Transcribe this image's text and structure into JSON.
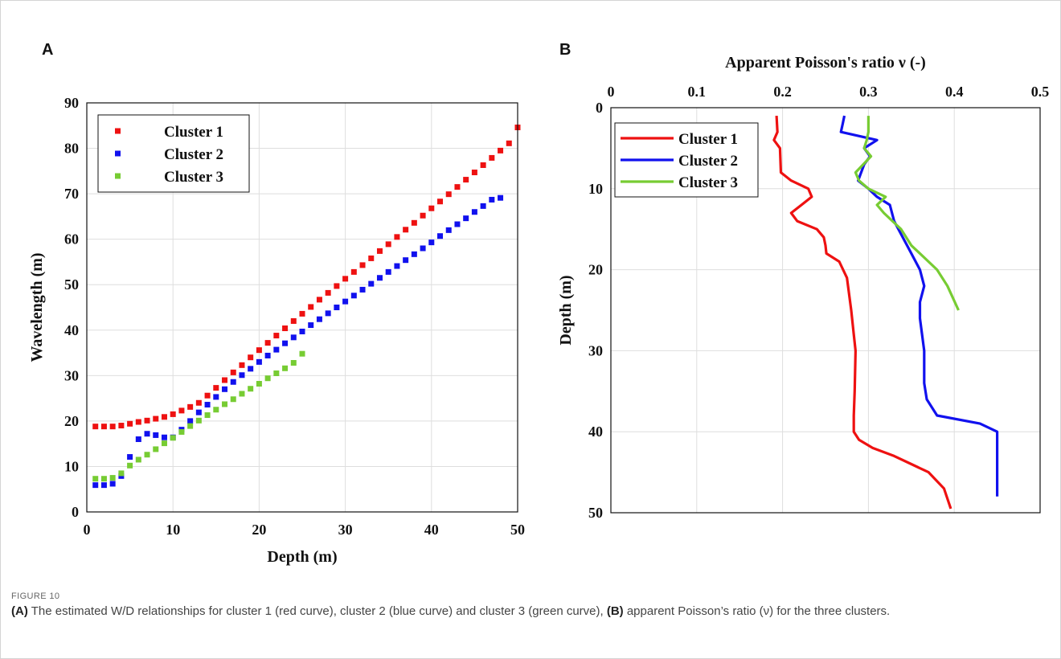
{
  "panels": {
    "a_letter": "A",
    "b_letter": "B"
  },
  "caption": {
    "label": "FIGURE 10",
    "a_tag": "(A)",
    "a_text": " The estimated W/D relationships for cluster 1 (red curve), cluster 2 (blue curve) and cluster 3 (green curve), ",
    "b_tag": "(B)",
    "b_text": " apparent Poisson’s ratio (ν) for the three clusters."
  },
  "colors": {
    "cluster1": "#ee1111",
    "cluster2": "#1111ee",
    "cluster3": "#77cc33"
  },
  "chart_data": [
    {
      "type": "scatter",
      "panel": "A",
      "xlabel": "Depth (m)",
      "ylabel": "Wavelength (m)",
      "xlim": [
        0,
        50
      ],
      "ylim": [
        0,
        90
      ],
      "xticks": [
        0,
        10,
        20,
        30,
        40,
        50
      ],
      "yticks": [
        0,
        10,
        20,
        30,
        40,
        50,
        60,
        70,
        80,
        90
      ],
      "grid": true,
      "legend_position": "top-left",
      "series": [
        {
          "name": "Cluster 1",
          "color": "#ee1111",
          "x": [
            1,
            2,
            3,
            4,
            5,
            6,
            7,
            8,
            9,
            10,
            11,
            12,
            13,
            14,
            15,
            16,
            17,
            18,
            19,
            20,
            21,
            22,
            23,
            24,
            25,
            26,
            27,
            28,
            29,
            30,
            31,
            32,
            33,
            34,
            35,
            36,
            37,
            38,
            39,
            40,
            41,
            42,
            43,
            44,
            45,
            46,
            47,
            48,
            49,
            50
          ],
          "y": [
            18.8,
            18.8,
            18.8,
            19.0,
            19.4,
            19.8,
            20.1,
            20.5,
            20.9,
            21.5,
            22.3,
            23.1,
            24.0,
            25.6,
            27.3,
            29.0,
            30.7,
            32.3,
            34.0,
            35.6,
            37.2,
            38.8,
            40.4,
            42.0,
            43.6,
            45.1,
            46.7,
            48.2,
            49.7,
            51.3,
            52.8,
            54.3,
            55.8,
            57.4,
            58.9,
            60.5,
            62.1,
            63.6,
            65.2,
            66.8,
            68.3,
            69.9,
            71.5,
            73.1,
            74.7,
            76.3,
            77.9,
            79.5,
            81.1,
            84.6
          ]
        },
        {
          "name": "Cluster 2",
          "color": "#1111ee",
          "x": [
            1,
            2,
            3,
            4,
            5,
            6,
            7,
            8,
            9,
            10,
            11,
            12,
            13,
            14,
            15,
            16,
            17,
            18,
            19,
            20,
            21,
            22,
            23,
            24,
            25,
            26,
            27,
            28,
            29,
            30,
            31,
            32,
            33,
            34,
            35,
            36,
            37,
            38,
            39,
            40,
            41,
            42,
            43,
            44,
            45,
            46,
            47,
            48
          ],
          "y": [
            5.9,
            5.9,
            6.2,
            7.9,
            12.1,
            16.0,
            17.2,
            16.9,
            16.4,
            16.4,
            18.1,
            20.0,
            21.9,
            23.6,
            25.3,
            27.0,
            28.6,
            30.1,
            31.5,
            33.0,
            34.4,
            35.7,
            37.1,
            38.4,
            39.7,
            41.1,
            42.4,
            43.7,
            45.0,
            46.3,
            47.6,
            48.9,
            50.2,
            51.5,
            52.8,
            54.1,
            55.4,
            56.7,
            58.0,
            59.3,
            60.7,
            62.0,
            63.3,
            64.6,
            66.0,
            67.3,
            68.7,
            69.1
          ]
        },
        {
          "name": "Cluster 3",
          "color": "#77cc33",
          "x": [
            1,
            2,
            3,
            4,
            5,
            6,
            7,
            8,
            9,
            10,
            11,
            12,
            13,
            14,
            15,
            16,
            17,
            18,
            19,
            20,
            21,
            22,
            23,
            24,
            25
          ],
          "y": [
            7.3,
            7.3,
            7.5,
            8.5,
            10.2,
            11.5,
            12.6,
            13.8,
            15.1,
            16.3,
            17.6,
            18.9,
            20.1,
            21.3,
            22.5,
            23.7,
            24.8,
            26.0,
            27.1,
            28.2,
            29.4,
            30.5,
            31.6,
            32.8,
            34.8
          ]
        }
      ]
    },
    {
      "type": "line",
      "panel": "B",
      "xlabel": "Apparent Poisson's ratio ν (-)",
      "ylabel": "Depth (m)",
      "xlim": [
        0,
        0.5
      ],
      "ylim": [
        0,
        50
      ],
      "y_reversed": true,
      "x_axis_position": "top",
      "xticks": [
        0,
        0.1,
        0.2,
        0.3,
        0.4,
        0.5
      ],
      "yticks": [
        0,
        10,
        20,
        30,
        40,
        50
      ],
      "grid": true,
      "legend_position": "top-left",
      "series": [
        {
          "name": "Cluster 1",
          "color": "#ee1111",
          "x": [
            0.193,
            0.194,
            0.19,
            0.197,
            0.198,
            0.21,
            0.23,
            0.234,
            0.222,
            0.21,
            0.217,
            0.24,
            0.248,
            0.25,
            0.251,
            0.266,
            0.275,
            0.28,
            0.283,
            0.285,
            0.284,
            0.283,
            0.283,
            0.289,
            0.305,
            0.33,
            0.35,
            0.37,
            0.388,
            0.396
          ],
          "y": [
            1,
            3,
            4,
            5,
            8,
            9,
            10,
            11,
            12,
            13,
            14,
            15,
            16,
            17,
            18,
            19,
            21,
            25,
            28,
            30,
            35,
            38,
            40,
            41,
            42,
            43,
            44,
            45,
            47,
            49.5
          ]
        },
        {
          "name": "Cluster 2",
          "color": "#1111ee",
          "x": [
            0.272,
            0.27,
            0.268,
            0.31,
            0.295,
            0.302,
            0.295,
            0.288,
            0.3,
            0.31,
            0.325,
            0.33,
            0.35,
            0.36,
            0.365,
            0.36,
            0.36,
            0.365,
            0.365,
            0.368,
            0.38,
            0.43,
            0.45,
            0.45,
            0.45
          ],
          "y": [
            1,
            2,
            3,
            4,
            5,
            6,
            7,
            9,
            10,
            11,
            12,
            14,
            18,
            20,
            22,
            24,
            26,
            30,
            34,
            36,
            38,
            39,
            40,
            45,
            48
          ]
        },
        {
          "name": "Cluster 3",
          "color": "#77cc33",
          "x": [
            0.3,
            0.3,
            0.298,
            0.295,
            0.303,
            0.285,
            0.289,
            0.3,
            0.32,
            0.31,
            0.318,
            0.338,
            0.35,
            0.36,
            0.38,
            0.392,
            0.405
          ],
          "y": [
            1,
            3,
            4,
            5,
            6,
            8,
            9,
            10,
            11,
            12,
            13,
            15,
            17,
            18,
            20,
            22,
            25
          ]
        }
      ]
    }
  ]
}
